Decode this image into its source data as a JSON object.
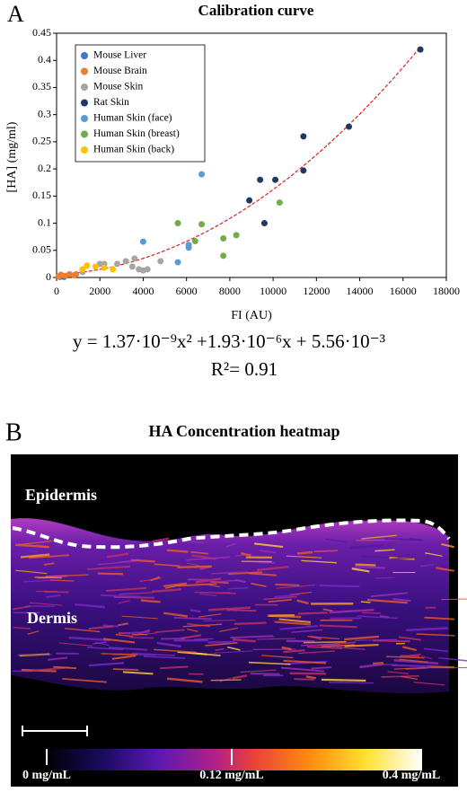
{
  "chart_data": {
    "type": "scatter",
    "panel_label": "A",
    "title": "Calibration curve",
    "x_label": "FI (AU)",
    "y_label": "[HA] (mg/ml)",
    "xlim": [
      0,
      18000
    ],
    "xticks": [
      0,
      2000,
      4000,
      6000,
      8000,
      10000,
      12000,
      14000,
      16000,
      18000
    ],
    "ylim": [
      0,
      0.45
    ],
    "yticks": [
      0,
      0.05,
      0.1,
      0.15,
      0.2,
      0.25,
      0.3,
      0.35,
      0.4,
      0.45
    ],
    "legend": "upper left",
    "series": [
      {
        "name": "Mouse Liver",
        "color": "#4472c4",
        "x": [
          150,
          250,
          350
        ],
        "values": [
          0.001,
          0.002,
          0.001
        ]
      },
      {
        "name": "Mouse Brain",
        "color": "#ed7d31",
        "x": [
          100,
          200,
          400,
          600,
          800,
          900
        ],
        "values": [
          0.002,
          0.005,
          0.003,
          0.006,
          0.004,
          0.006
        ]
      },
      {
        "name": "Mouse Skin",
        "color": "#a5a5a5",
        "x": [
          1200,
          2000,
          2200,
          2800,
          3200,
          3500,
          3600,
          3800,
          4000,
          4200,
          4800
        ],
        "values": [
          0.01,
          0.025,
          0.025,
          0.025,
          0.03,
          0.02,
          0.035,
          0.015,
          0.013,
          0.015,
          0.03
        ]
      },
      {
        "name": "Rat Skin",
        "color": "#1f3864",
        "x": [
          16800,
          13500,
          11400,
          11400,
          9400,
          10100,
          8900,
          9600
        ],
        "values": [
          0.42,
          0.278,
          0.26,
          0.197,
          0.18,
          0.18,
          0.142,
          0.1
        ]
      },
      {
        "name": "Human Skin (face)",
        "color": "#5b9bd5",
        "x": [
          6700,
          4000,
          6100,
          6100,
          5600
        ],
        "values": [
          0.19,
          0.066,
          0.06,
          0.055,
          0.028
        ]
      },
      {
        "name": "Human Skin (breast)",
        "color": "#70ad47",
        "x": [
          5600,
          6700,
          10300,
          8300,
          7700,
          7700,
          6400
        ],
        "values": [
          0.1,
          0.098,
          0.138,
          0.078,
          0.072,
          0.04,
          0.067
        ]
      },
      {
        "name": "Human Skin (back)",
        "color": "#ffc000",
        "x": [
          1400,
          1200,
          2200,
          2600,
          1800
        ],
        "values": [
          0.022,
          0.015,
          0.018,
          0.015,
          0.02
        ]
      }
    ],
    "fit": {
      "a": 1.37e-09,
      "b": 1.93e-06,
      "c": 0.00556,
      "color": "#e02020"
    },
    "equation": "y = 1.37·10⁻⁹x²  +1.93·10⁻⁶x + 5.56·10⁻³",
    "r_squared": "R²= 0.91"
  },
  "heatmap": {
    "panel_label": "B",
    "title": "HA Concentration heatmap",
    "labels": [
      "Epidermis",
      "Dermis"
    ],
    "colorbar_labels": [
      "0 mg/mL",
      "0.12 mg/mL",
      "0.4 mg/mL"
    ]
  }
}
